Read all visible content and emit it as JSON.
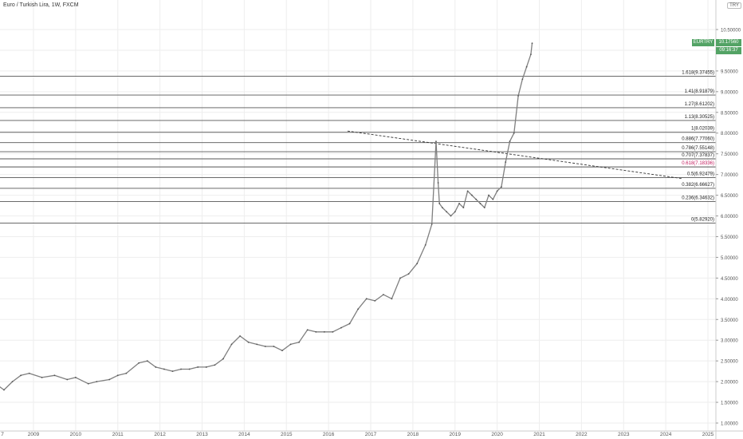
{
  "header": {
    "title": "Euro / Turkish Lira, 1W, FXCM",
    "currency": "TRY"
  },
  "price_tag": {
    "symbol": "EURTRY",
    "price": "10.17560",
    "countdown": "09:16:37"
  },
  "colors": {
    "candle": "#7f7f7f",
    "fib_line": "#555555",
    "highlight": "#c2185b",
    "price_tag": "#53a365",
    "grid": "#eeeeee"
  },
  "chart_data": {
    "type": "line",
    "x_unit": "year",
    "ylim": [
      1.0,
      10.7
    ],
    "y_ticks": [
      "1.00000",
      "1.50000",
      "2.00000",
      "2.50000",
      "3.00000",
      "3.50000",
      "4.00000",
      "4.50000",
      "5.00000",
      "5.50000",
      "6.00000",
      "6.50000",
      "7.00000",
      "7.50000",
      "8.00000",
      "8.50000",
      "9.00000",
      "9.50000",
      "10.00000",
      "10.50000"
    ],
    "x_ticks": [
      "7",
      "2009",
      "2010",
      "2011",
      "2012",
      "2013",
      "2014",
      "2015",
      "2016",
      "2017",
      "2018",
      "2019",
      "2020",
      "2021",
      "2022",
      "2023",
      "2024",
      "2025"
    ],
    "series": [
      {
        "x": [
          2007.9,
          2008.1,
          2008.3,
          2008.5,
          2008.7,
          2008.9,
          2009.2,
          2009.5,
          2009.8,
          2010.0,
          2010.3,
          2010.5,
          2010.8,
          2011.0,
          2011.2,
          2011.5,
          2011.7,
          2011.9,
          2012.1,
          2012.3,
          2012.5,
          2012.7,
          2012.9,
          2013.1,
          2013.3,
          2013.5,
          2013.7,
          2013.9,
          2014.1,
          2014.3,
          2014.5,
          2014.7,
          2014.9,
          2015.1,
          2015.3,
          2015.5,
          2015.7,
          2015.9,
          2016.1,
          2016.3,
          2016.5,
          2016.7,
          2016.9,
          2017.1,
          2017.3,
          2017.5,
          2017.7,
          2017.9,
          2018.1,
          2018.3,
          2018.45,
          2018.55,
          2018.6,
          2018.63,
          2018.7,
          2018.8,
          2018.9,
          2019.0,
          2019.1,
          2019.2,
          2019.3,
          2019.4,
          2019.5,
          2019.6,
          2019.7,
          2019.8,
          2019.9,
          2020.0,
          2020.1,
          2020.2,
          2020.3,
          2020.4,
          2020.5,
          2020.6,
          2020.7,
          2020.8,
          2020.83
        ],
        "y": [
          2.05,
          1.95,
          1.8,
          2.0,
          2.15,
          2.2,
          2.1,
          2.15,
          2.05,
          2.1,
          1.95,
          2.0,
          2.05,
          2.15,
          2.2,
          2.45,
          2.5,
          2.35,
          2.3,
          2.25,
          2.3,
          2.3,
          2.35,
          2.35,
          2.4,
          2.55,
          2.9,
          3.1,
          2.95,
          2.9,
          2.85,
          2.85,
          2.75,
          2.9,
          2.95,
          3.25,
          3.2,
          3.2,
          3.2,
          3.3,
          3.4,
          3.75,
          4.0,
          3.95,
          4.1,
          4.0,
          4.5,
          4.6,
          4.85,
          5.3,
          5.8,
          7.8,
          6.8,
          6.3,
          6.2,
          6.1,
          6.0,
          6.1,
          6.3,
          6.2,
          6.6,
          6.5,
          6.4,
          6.3,
          6.2,
          6.5,
          6.4,
          6.6,
          6.7,
          7.3,
          7.8,
          8.0,
          8.9,
          9.3,
          9.6,
          9.9,
          10.17
        ]
      }
    ],
    "fib_levels": [
      {
        "label": "1.618(9.37455)",
        "value": 9.37455
      },
      {
        "label": "1.41(8.91879)",
        "value": 8.91879
      },
      {
        "label": "1.27(8.61202)",
        "value": 8.61202
      },
      {
        "label": "1.13(8.30525)",
        "value": 8.30525
      },
      {
        "label": "1(8.02039)",
        "value": 8.02039
      },
      {
        "label": "0.886(7.77060)",
        "value": 7.7706
      },
      {
        "label": "0.786(7.55148)",
        "value": 7.55148
      },
      {
        "label": "0.707(7.37837)",
        "value": 7.37837
      },
      {
        "label": "0.618(7.18336)",
        "value": 7.18336
      },
      {
        "label": "0.5(6.92479)",
        "value": 6.92479
      },
      {
        "label": "0.382(6.66627)",
        "value": 6.66627
      },
      {
        "label": "0.236(6.34632)",
        "value": 6.34632
      },
      {
        "label": "0(5.82920)",
        "value": 5.8292
      }
    ],
    "trendline": {
      "x": [
        2016.45,
        2024.4
      ],
      "y": [
        8.05,
        6.9
      ]
    }
  }
}
